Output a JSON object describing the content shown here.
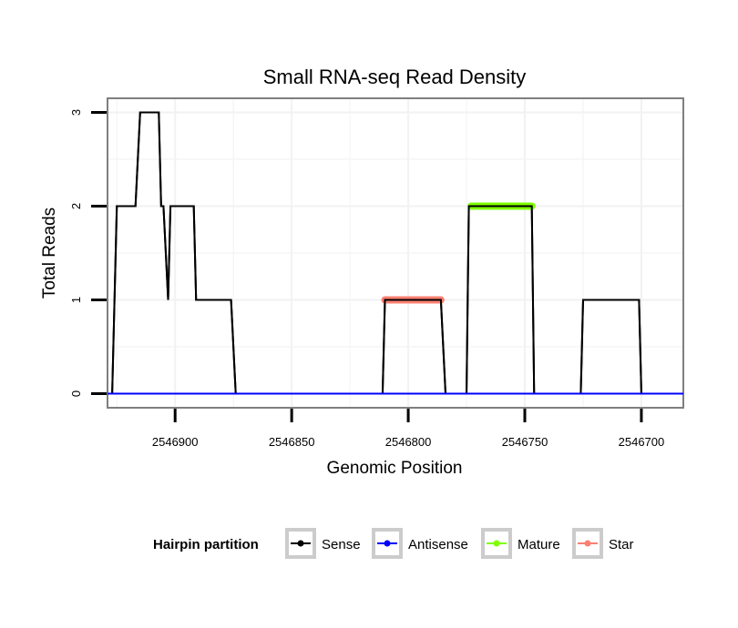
{
  "chart_data": {
    "type": "line",
    "title": "Small RNA-seq Read Density",
    "xlabel": "Genomic Position",
    "ylabel": "Total Reads",
    "x_reversed": true,
    "xlim": [
      2546682,
      2546929
    ],
    "ylim": [
      -0.15,
      3.15
    ],
    "x_ticks": [
      2546900,
      2546850,
      2546800,
      2546750,
      2546700
    ],
    "x_tick_labels": [
      "2546900",
      "2546850",
      "2546800",
      "2546750",
      "2546700"
    ],
    "y_ticks": [
      0,
      1,
      2,
      3
    ],
    "y_tick_labels": [
      "0",
      "1",
      "2",
      "3"
    ],
    "grid": true,
    "legend_title": "Hairpin partition",
    "legend_position": "bottom",
    "series": [
      {
        "name": "Sense",
        "color": "#000000",
        "points": [
          [
            2546929,
            0
          ],
          [
            2546927,
            0
          ],
          [
            2546925,
            2
          ],
          [
            2546917,
            2
          ],
          [
            2546915,
            3
          ],
          [
            2546907,
            3
          ],
          [
            2546906,
            2
          ],
          [
            2546905,
            2
          ],
          [
            2546903,
            1
          ],
          [
            2546902,
            2
          ],
          [
            2546892,
            2
          ],
          [
            2546891,
            1
          ],
          [
            2546876,
            1
          ],
          [
            2546874,
            0
          ],
          [
            2546811,
            0
          ],
          [
            2546810,
            1
          ],
          [
            2546786,
            1
          ],
          [
            2546784,
            0
          ],
          [
            2546775,
            0
          ],
          [
            2546774,
            2
          ],
          [
            2546747,
            2
          ],
          [
            2546746,
            0
          ],
          [
            2546726,
            0
          ],
          [
            2546725,
            1
          ],
          [
            2546701,
            1
          ],
          [
            2546700,
            0
          ],
          [
            2546682,
            0
          ]
        ]
      },
      {
        "name": "Antisense",
        "color": "#0000ff",
        "points": [
          [
            2546929,
            0
          ],
          [
            2546682,
            0
          ]
        ]
      },
      {
        "name": "Mature",
        "color": "#7fff00",
        "points": [
          [
            2546773,
            2
          ],
          [
            2546747,
            2
          ]
        ]
      },
      {
        "name": "Star",
        "color": "#fa8072",
        "points": [
          [
            2546810,
            1
          ],
          [
            2546786,
            1
          ]
        ]
      }
    ]
  }
}
